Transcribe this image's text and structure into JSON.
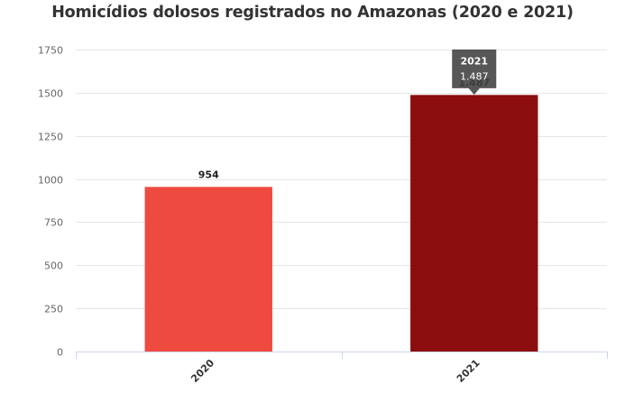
{
  "chart_data": {
    "type": "bar",
    "title": "Homicídios dolosos registrados no Amazonas (2020 e 2021)",
    "categories": [
      "2020",
      "2021"
    ],
    "values": [
      954,
      1487
    ],
    "value_labels": [
      "954",
      "1.487"
    ],
    "colors": [
      "#ee4a3f",
      "#8b0d0d"
    ],
    "ylim": [
      0,
      1750
    ],
    "yticks": [
      "0",
      "250",
      "500",
      "750",
      "1000",
      "1250",
      "1500",
      "1750"
    ],
    "grid": true,
    "xlabel": "",
    "ylabel": "",
    "tooltip": {
      "category": "2021",
      "value": "1.487"
    }
  }
}
